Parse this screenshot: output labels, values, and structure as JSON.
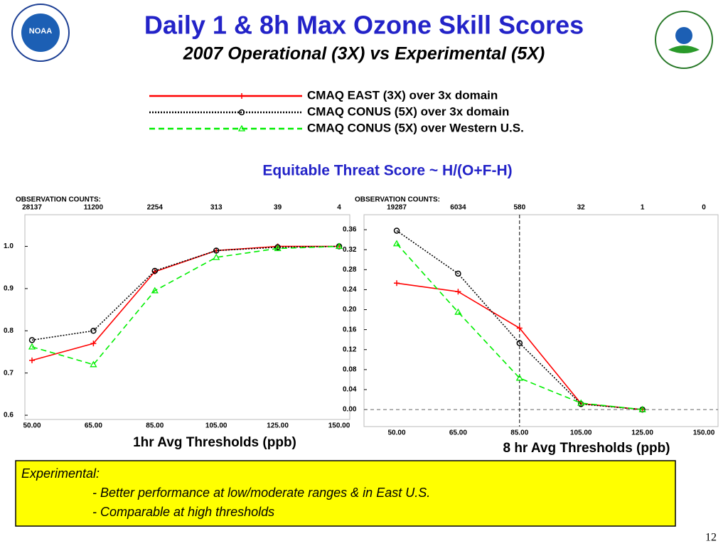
{
  "title": "Daily 1 & 8h Max Ozone Skill Scores",
  "subtitle": "2007 Operational (3X) vs Experimental (5X)",
  "heading": "Equitable Threat Score ~ H/(O+F-H)",
  "logo_text": "NOAA",
  "note": {
    "title": "Experimental:",
    "lines": [
      "- Better performance at low/moderate ranges & in East U.S.",
      "- Comparable at high thresholds"
    ]
  },
  "page_number": "12",
  "chart_data": [
    {
      "type": "line",
      "counts_label": "OBSERVATION COUNTS:",
      "observation_counts": [
        "28137",
        "11200",
        "2254",
        "313",
        "39",
        "4"
      ],
      "categories": [
        "50.00",
        "65.00",
        "85.00",
        "105.00",
        "125.00",
        "150.00"
      ],
      "xlabel": "1hr Avg Thresholds (ppb)",
      "ylim": [
        0.59,
        1.075
      ],
      "yticks": [
        0.6,
        0.7,
        0.8,
        0.9,
        {
          "value": 1,
          "label": "1.0"
        }
      ],
      "series": [
        {
          "name": "CMAQ EAST (3X) over 3x domain",
          "color": "#ff0000",
          "marker": "plus",
          "dash": "solid",
          "values": [
            0.73,
            0.77,
            0.94,
            0.99,
            1.0,
            1.0
          ]
        },
        {
          "name": "CMAQ CONUS (5X) over 3x domain",
          "color": "#000000",
          "marker": "circle",
          "dash": "dotted",
          "values": [
            0.778,
            0.8,
            0.942,
            0.99,
            0.998,
            1.0
          ]
        },
        {
          "name": "CMAQ CONUS (5X) over Western U.S.",
          "color": "#00ee00",
          "marker": "triangle",
          "dash": "dashed",
          "values": [
            0.762,
            0.72,
            0.895,
            0.974,
            0.995,
            1.0
          ]
        }
      ]
    },
    {
      "type": "line",
      "counts_label": "OBSERVATION COUNTS:",
      "observation_counts": [
        "19287",
        "6034",
        "580",
        "32",
        "1",
        "0"
      ],
      "categories": [
        "50.00",
        "65.00",
        "85.00",
        "105.00",
        "125.00",
        "150.00"
      ],
      "xlabel": "8 hr Avg Thresholds (ppb)",
      "ylim": [
        -0.034,
        0.39
      ],
      "yticks": [
        {
          "value": 0,
          "label": "0.00"
        },
        0.04,
        0.08,
        0.12,
        0.16,
        {
          "value": 0.2,
          "label": "0.20"
        },
        0.24,
        0.28,
        0.32,
        0.36
      ],
      "vline_category": "85.00",
      "hline": 0,
      "series": [
        {
          "color": "#ff0000",
          "marker": "plus",
          "dash": "solid",
          "values": [
            0.253,
            0.236,
            0.163,
            0.012,
            0.0,
            null
          ]
        },
        {
          "color": "#000000",
          "marker": "circle",
          "dash": "dotted",
          "values": [
            0.358,
            0.272,
            0.133,
            0.011,
            0.0,
            null
          ]
        },
        {
          "color": "#00ee00",
          "marker": "triangle",
          "dash": "dashed",
          "values": [
            0.332,
            0.195,
            0.063,
            0.013,
            0.0,
            null
          ]
        }
      ]
    }
  ]
}
